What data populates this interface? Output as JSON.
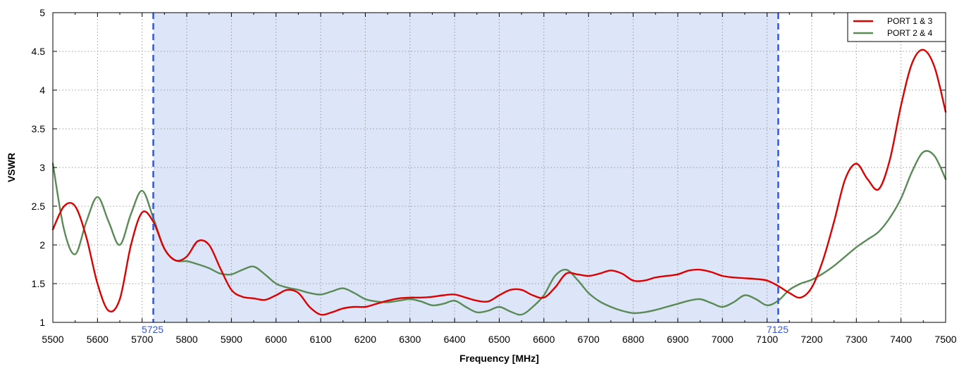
{
  "chart_data": {
    "type": "line",
    "xlabel": "Frequency [MHz]",
    "ylabel": "VSWR",
    "xlim": [
      5500,
      7500
    ],
    "ylim": [
      1,
      5
    ],
    "x_ticks": [
      5500,
      5600,
      5700,
      5800,
      5900,
      6000,
      6100,
      6200,
      6300,
      6400,
      6500,
      6600,
      6700,
      6800,
      6900,
      7000,
      7100,
      7200,
      7300,
      7400,
      7500
    ],
    "x_minor_ticks": [
      5550,
      5650,
      5750,
      5850,
      5950,
      6050,
      6150,
      6250,
      6350,
      6450,
      6550,
      6650,
      6750,
      6850,
      6950,
      7050,
      7150,
      7250,
      7350,
      7450
    ],
    "y_ticks": [
      1,
      1.5,
      2,
      2.5,
      3,
      3.5,
      4,
      4.5,
      5
    ],
    "y_tick_labels": [
      "1",
      "1.5",
      "2",
      "2.5",
      "3",
      "3.5",
      "4",
      "4.5",
      "5"
    ],
    "grid": true,
    "legend_position": "top-right",
    "band": {
      "start": 5725,
      "end": 7125,
      "start_label": "5725",
      "end_label": "7125",
      "fill_color": "#dce6f8",
      "line_color": "#3355dd"
    },
    "series": [
      {
        "name": "PORT 1 & 3",
        "color": "#dd0000",
        "x": [
          5500,
          5525,
          5550,
          5575,
          5600,
          5625,
          5650,
          5675,
          5700,
          5725,
          5750,
          5775,
          5800,
          5825,
          5850,
          5875,
          5900,
          5925,
          5950,
          5975,
          6000,
          6025,
          6050,
          6075,
          6100,
          6125,
          6150,
          6175,
          6200,
          6225,
          6250,
          6275,
          6300,
          6325,
          6350,
          6375,
          6400,
          6425,
          6450,
          6475,
          6500,
          6525,
          6550,
          6575,
          6600,
          6625,
          6650,
          6675,
          6700,
          6725,
          6750,
          6775,
          6800,
          6825,
          6850,
          6875,
          6900,
          6925,
          6950,
          6975,
          7000,
          7025,
          7050,
          7075,
          7100,
          7125,
          7150,
          7175,
          7200,
          7225,
          7250,
          7275,
          7300,
          7325,
          7350,
          7375,
          7400,
          7425,
          7450,
          7475,
          7500
        ],
        "values": [
          2.2,
          2.5,
          2.5,
          2.1,
          1.5,
          1.15,
          1.3,
          2.0,
          2.42,
          2.3,
          1.95,
          1.8,
          1.85,
          2.05,
          2.0,
          1.7,
          1.42,
          1.33,
          1.31,
          1.29,
          1.35,
          1.42,
          1.38,
          1.2,
          1.1,
          1.13,
          1.18,
          1.2,
          1.2,
          1.24,
          1.28,
          1.31,
          1.32,
          1.32,
          1.33,
          1.35,
          1.36,
          1.32,
          1.28,
          1.27,
          1.35,
          1.42,
          1.42,
          1.35,
          1.32,
          1.45,
          1.63,
          1.62,
          1.6,
          1.63,
          1.67,
          1.63,
          1.54,
          1.54,
          1.58,
          1.6,
          1.62,
          1.67,
          1.68,
          1.65,
          1.6,
          1.58,
          1.57,
          1.56,
          1.54,
          1.47,
          1.38,
          1.32,
          1.45,
          1.8,
          2.3,
          2.85,
          3.05,
          2.85,
          2.72,
          3.1,
          3.8,
          4.35,
          4.52,
          4.3,
          3.72
        ]
      },
      {
        "name": "PORT 2 & 4",
        "color": "#5a8a55",
        "x": [
          5500,
          5525,
          5550,
          5575,
          5600,
          5625,
          5650,
          5675,
          5700,
          5725,
          5750,
          5775,
          5800,
          5825,
          5850,
          5875,
          5900,
          5925,
          5950,
          5975,
          6000,
          6025,
          6050,
          6075,
          6100,
          6125,
          6150,
          6175,
          6200,
          6225,
          6250,
          6275,
          6300,
          6325,
          6350,
          6375,
          6400,
          6425,
          6450,
          6475,
          6500,
          6525,
          6550,
          6575,
          6600,
          6625,
          6650,
          6675,
          6700,
          6725,
          6750,
          6775,
          6800,
          6825,
          6850,
          6875,
          6900,
          6925,
          6950,
          6975,
          7000,
          7025,
          7050,
          7075,
          7100,
          7125,
          7150,
          7175,
          7200,
          7225,
          7250,
          7275,
          7300,
          7325,
          7350,
          7375,
          7400,
          7425,
          7450,
          7475,
          7500
        ],
        "values": [
          3.05,
          2.2,
          1.88,
          2.3,
          2.62,
          2.3,
          2.0,
          2.4,
          2.7,
          2.35,
          1.95,
          1.8,
          1.79,
          1.75,
          1.7,
          1.63,
          1.62,
          1.68,
          1.72,
          1.62,
          1.5,
          1.45,
          1.42,
          1.38,
          1.36,
          1.4,
          1.44,
          1.38,
          1.3,
          1.27,
          1.26,
          1.28,
          1.3,
          1.27,
          1.22,
          1.24,
          1.28,
          1.2,
          1.13,
          1.15,
          1.2,
          1.14,
          1.1,
          1.2,
          1.35,
          1.6,
          1.68,
          1.55,
          1.38,
          1.27,
          1.2,
          1.15,
          1.12,
          1.13,
          1.16,
          1.2,
          1.24,
          1.28,
          1.3,
          1.25,
          1.2,
          1.26,
          1.35,
          1.3,
          1.22,
          1.28,
          1.42,
          1.5,
          1.55,
          1.63,
          1.73,
          1.85,
          1.97,
          2.07,
          2.17,
          2.35,
          2.6,
          2.95,
          3.2,
          3.15,
          2.85
        ]
      }
    ]
  }
}
